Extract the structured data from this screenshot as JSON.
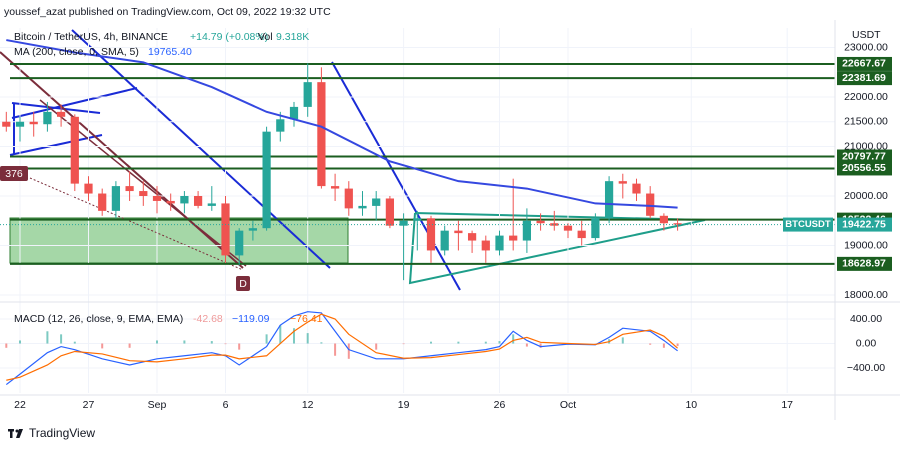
{
  "header": {
    "published": "youssef_azat published on TradingView.com, Oct 09, 2022 19:32 UTC",
    "symbol": "Bitcoin / TetherUS, 4h, BINANCE",
    "change": "+14.79 (+0.08%)",
    "vol_label": "Vol",
    "vol": "9.318K",
    "ma_label": "MA (200, close, 0, SMA, 5)",
    "ma_value": "19765.40",
    "currency": "USDT",
    "price_tag": "BTCUSDT",
    "marker_left": "376",
    "marker_d": "D"
  },
  "footer": {
    "brand": "TradingView"
  },
  "chart_data": [
    {
      "type": "candlestick",
      "up_color": "#26a69a",
      "down_color": "#ef5350",
      "x": [
        -1,
        0,
        1,
        2,
        3,
        4,
        5,
        6,
        7,
        8,
        9,
        10,
        11,
        12,
        13,
        14,
        15,
        16,
        17,
        18,
        19,
        20,
        21,
        22,
        23,
        24,
        25,
        26,
        27,
        28,
        29,
        30,
        31,
        32,
        33,
        34,
        35,
        36,
        37,
        38,
        39,
        40,
        41,
        42,
        43,
        44,
        45,
        46,
        47,
        48
      ],
      "open": [
        21500,
        21400,
        21500,
        21450,
        21700,
        21600,
        20250,
        20050,
        19700,
        20200,
        20100,
        20000,
        19900,
        19850,
        20000,
        19800,
        19850,
        18800,
        19300,
        19350,
        21300,
        21550,
        21800,
        22300,
        20200,
        20150,
        19750,
        19800,
        19950,
        19400,
        19500,
        19550,
        18900,
        19300,
        19250,
        19100,
        18900,
        19200,
        19100,
        19500,
        19450,
        19400,
        19300,
        19150,
        19550,
        20300,
        20250,
        20050,
        19600,
        19450
      ],
      "high": [
        21700,
        21600,
        21700,
        21900,
        21850,
        21650,
        20400,
        20150,
        20300,
        20500,
        20300,
        20200,
        20050,
        20100,
        20100,
        20200,
        20000,
        19350,
        19500,
        21400,
        21700,
        21900,
        22680,
        22600,
        20450,
        20300,
        20100,
        20100,
        20000,
        19650,
        19700,
        19600,
        19400,
        19500,
        19300,
        19200,
        19300,
        20350,
        19750,
        19650,
        19700,
        19450,
        19500,
        19650,
        20400,
        20450,
        20350,
        20200,
        19650,
        19550
      ],
      "low": [
        21300,
        21100,
        21200,
        21300,
        21400,
        20100,
        19900,
        19600,
        19550,
        19900,
        19800,
        19650,
        19700,
        19650,
        19750,
        19700,
        18650,
        18600,
        19100,
        19300,
        21100,
        21400,
        21600,
        20150,
        19900,
        19600,
        19600,
        19500,
        19350,
        18300,
        18900,
        18650,
        18800,
        18900,
        18850,
        18650,
        18800,
        18900,
        18850,
        19300,
        19300,
        19150,
        19000,
        19100,
        19450,
        19950,
        19900,
        19550,
        19300,
        19300
      ],
      "close": [
        21400,
        21500,
        21450,
        21700,
        21600,
        20250,
        20050,
        19700,
        20200,
        20100,
        20000,
        19900,
        19850,
        20000,
        19800,
        19850,
        18800,
        19300,
        19350,
        21300,
        21550,
        21800,
        22300,
        20200,
        20150,
        19750,
        19800,
        19950,
        19400,
        19500,
        19550,
        18900,
        19300,
        19250,
        19100,
        18900,
        19200,
        19100,
        19500,
        19450,
        19400,
        19300,
        19150,
        19550,
        20300,
        20250,
        20050,
        19600,
        19450,
        19422.75
      ],
      "ma": {
        "color": "#3548e0",
        "x": [
          -1,
          4,
          9,
          14,
          18,
          22,
          27,
          32,
          37,
          42,
          46,
          48
        ],
        "values": [
          23150,
          22900,
          22700,
          22200,
          21700,
          21400,
          20700,
          20300,
          20150,
          19850,
          19800,
          19765.4
        ]
      },
      "levels": [
        22667.67,
        22381.69,
        20797.77,
        20556.55,
        19522.46,
        18628.97
      ],
      "level_color": "#1b5e20",
      "grid": true,
      "xlim": [
        -1.46,
        59.49
      ],
      "xticks": [
        {
          "value": 0,
          "label": "22"
        },
        {
          "value": 5,
          "label": "27"
        },
        {
          "value": 10,
          "label": "Sep"
        },
        {
          "value": 15,
          "label": "6"
        },
        {
          "value": 21,
          "label": "12"
        },
        {
          "value": 28,
          "label": "19"
        },
        {
          "value": 35,
          "label": "26"
        },
        {
          "value": 40,
          "label": "Oct"
        },
        {
          "value": 49,
          "label": "10"
        },
        {
          "value": 56,
          "label": "17"
        }
      ],
      "ylim": [
        17899,
        23394
      ],
      "yticks": [
        {
          "value": 18000,
          "label": "18000.00"
        },
        {
          "value": 19000,
          "label": "19000.00"
        },
        {
          "value": 20000,
          "label": "20000.00"
        },
        {
          "value": 21000,
          "label": "21000.00"
        },
        {
          "value": 21500,
          "label": "21500.00"
        },
        {
          "value": 22000,
          "label": "22000.00"
        },
        {
          "value": 23000,
          "label": "23000.00"
        }
      ]
    },
    {
      "type": "macd",
      "label": "MACD (12, 26, close, 9, EMA, EMA)",
      "legend_values": [
        "-42.68",
        "−119.09",
        "−76.41"
      ],
      "x": [
        -1,
        0,
        2,
        3,
        4,
        6,
        8,
        10,
        12,
        14,
        15,
        16,
        18,
        19,
        20,
        21,
        22,
        23,
        24,
        26,
        28,
        30,
        32,
        34,
        35,
        36,
        37,
        38,
        40,
        42,
        43,
        44,
        46,
        47,
        48
      ],
      "series": [
        {
          "color": "#2962ff",
          "values": [
            -670,
            -500,
            -150,
            -50,
            -100,
            -250,
            -350,
            -250,
            -200,
            -150,
            -200,
            -350,
            -50,
            300,
            450,
            520,
            500,
            200,
            -100,
            -250,
            -250,
            -200,
            -150,
            -100,
            -50,
            200,
            50,
            -50,
            -10,
            -20,
            100,
            250,
            200,
            50,
            -119.09
          ]
        },
        {
          "color": "#ff6d00",
          "values": [
            -600,
            -550,
            -350,
            -200,
            -130,
            -170,
            -280,
            -300,
            -250,
            -190,
            -190,
            -250,
            -200,
            0,
            200,
            350,
            480,
            400,
            150,
            -150,
            -240,
            -230,
            -180,
            -130,
            -90,
            50,
            100,
            20,
            0,
            -15,
            30,
            150,
            220,
            120,
            -76.41
          ]
        }
      ],
      "histogram": {
        "up_color": "#26a69a",
        "down_color": "#ef5350",
        "values": [
          -70,
          50,
          200,
          150,
          30,
          -80,
          -70,
          50,
          50,
          40,
          -10,
          -100,
          150,
          300,
          250,
          170,
          20,
          -200,
          -250,
          -100,
          -10,
          30,
          30,
          30,
          40,
          150,
          -50,
          -70,
          -10,
          -5,
          70,
          100,
          -20,
          -70,
          -42.68
        ]
      },
      "ylim": [
        -808,
        629
      ],
      "yticks": [
        {
          "value": -400,
          "label": "−400.00"
        },
        {
          "value": 0,
          "label": "0.00"
        },
        {
          "value": 400,
          "label": "400.00"
        }
      ]
    }
  ]
}
